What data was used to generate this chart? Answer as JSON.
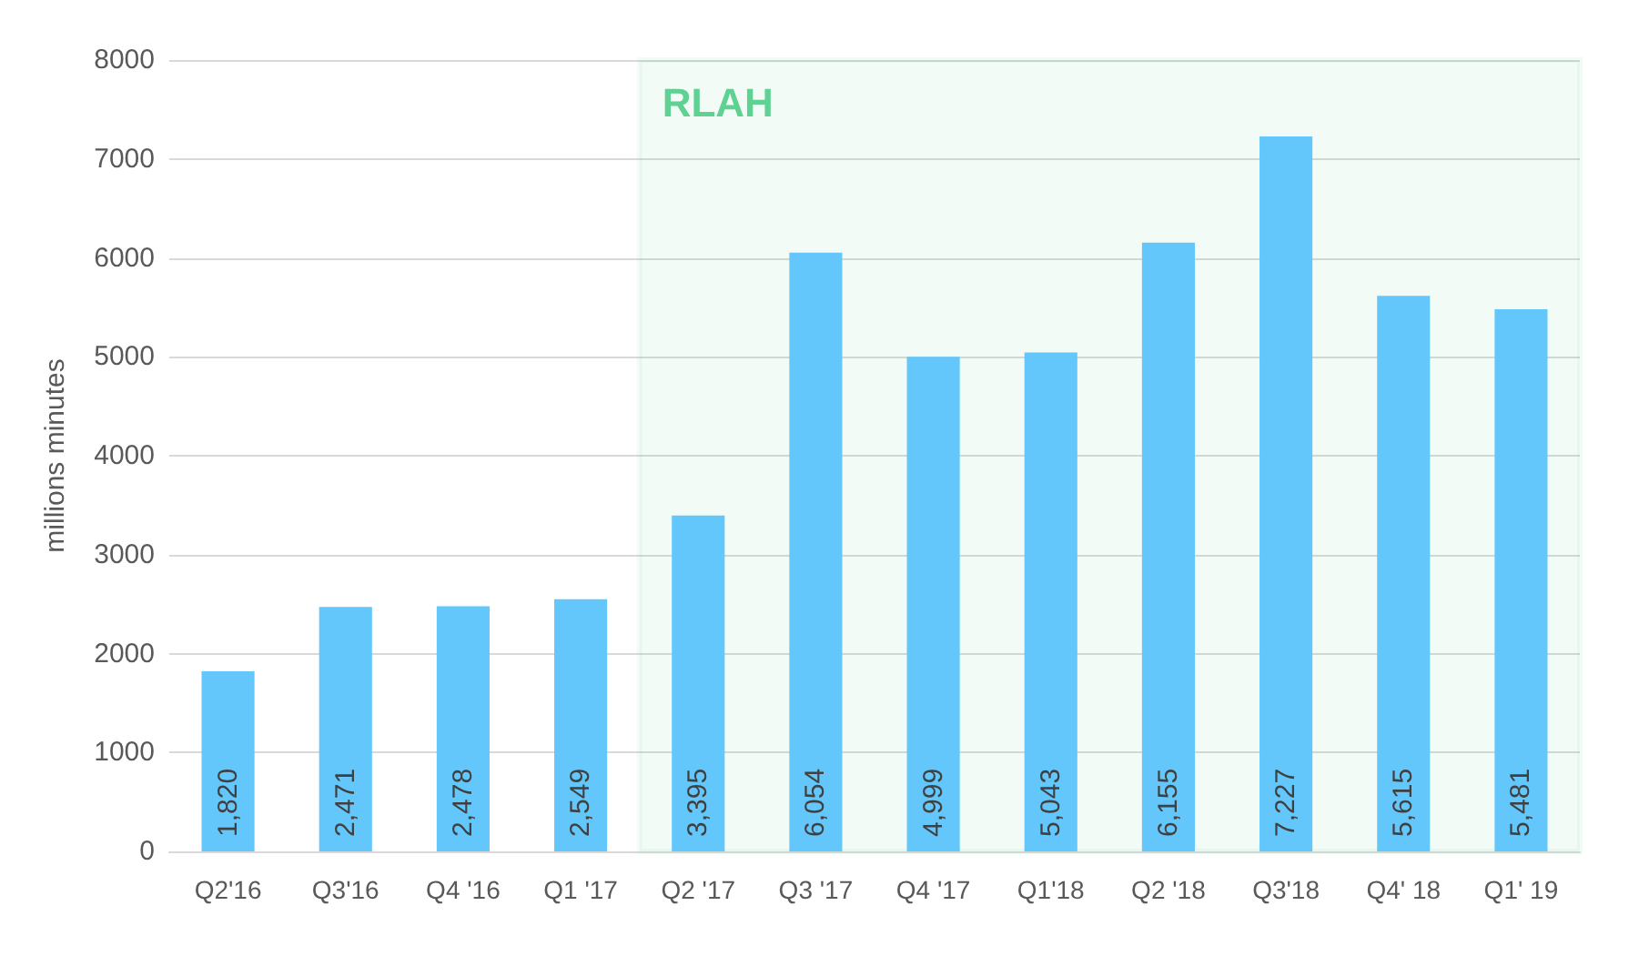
{
  "chart_data": {
    "type": "bar",
    "ylabel": "millions minutes",
    "categories": [
      "Q2'16",
      "Q3'16",
      "Q4 '16",
      "Q1 '17",
      "Q2 '17",
      "Q3 '17",
      "Q4 '17",
      "Q1'18",
      "Q2 '18",
      "Q3'18",
      "Q4' 18",
      "Q1' 19"
    ],
    "values": [
      1820,
      2471,
      2478,
      2549,
      3395,
      6054,
      4999,
      5043,
      6155,
      7227,
      5615,
      5481
    ],
    "color": "#63c7fb",
    "value_labels": [
      "1,820",
      "2,471",
      "2,478",
      "2,549",
      "3,395",
      "6,054",
      "4,999",
      "5,043",
      "6,155",
      "7,227",
      "5,615",
      "5,481"
    ],
    "ylim": [
      0,
      8000
    ],
    "yticks": [
      0,
      1000,
      2000,
      3000,
      4000,
      5000,
      6000,
      7000,
      8000
    ],
    "grid": "y",
    "bands": [
      {
        "axis": "x",
        "from": "Q2 '17",
        "to": "Q1' 19",
        "label": "RLAH",
        "color": "#5fd192"
      }
    ]
  }
}
